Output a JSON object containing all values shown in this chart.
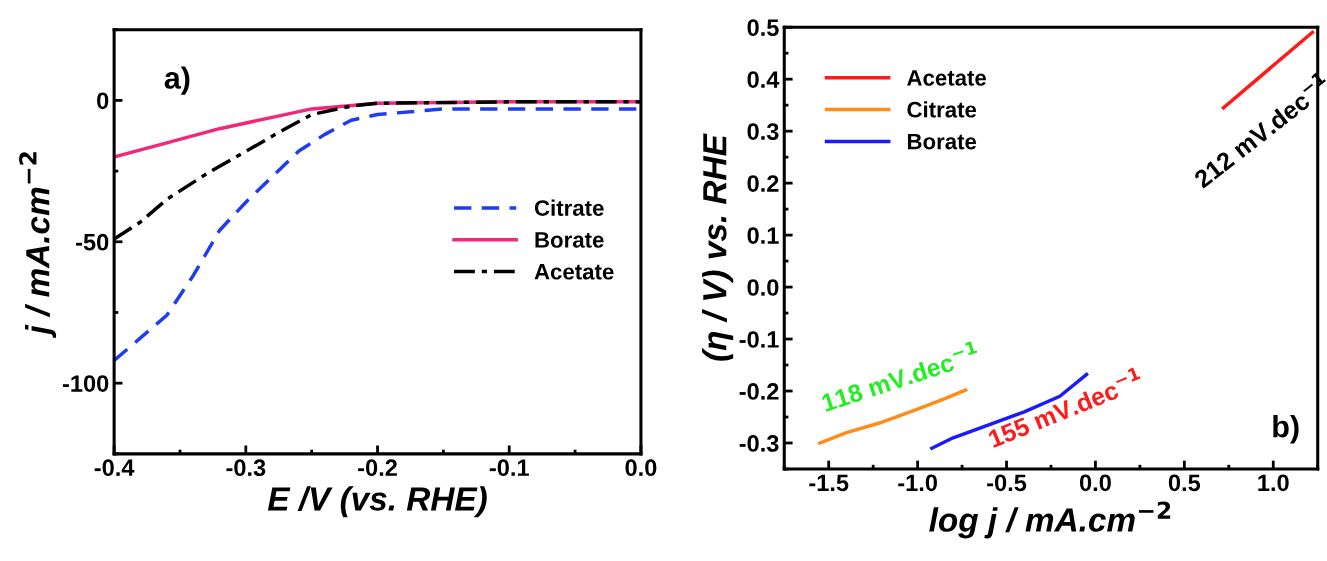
{
  "chart_data": [
    {
      "type": "line",
      "xlabel": "E /V (vs. RHE)",
      "ylabel": "j / mA.cm$^{−2}$",
      "xlim": [
        -0.4,
        0.0
      ],
      "xticks": [
        {
          "value": -0.4,
          "label": "-0.4"
        },
        {
          "value": -0.3,
          "label": "-0.3"
        },
        {
          "value": -0.2,
          "label": "-0.2"
        },
        {
          "value": -0.1,
          "label": "-0.1"
        },
        {
          "value": 0.0,
          "label": "0.0"
        }
      ],
      "ylim": [
        -125,
        25
      ],
      "yticks": [
        {
          "value": -100,
          "label": "-100"
        },
        {
          "value": -50,
          "label": "-50"
        },
        {
          "value": 0,
          "label": "0"
        }
      ],
      "legend": "center right",
      "grid": false,
      "annotations": [
        "a)"
      ],
      "series": [
        {
          "name": "Citrate",
          "color": "#1f3cf0",
          "line_style": "dashed",
          "x": [
            -0.4,
            -0.38,
            -0.36,
            -0.34,
            -0.32,
            -0.3,
            -0.28,
            -0.26,
            -0.24,
            -0.22,
            -0.2,
            -0.15,
            -0.1,
            0.0
          ],
          "values": [
            -92,
            -84,
            -76,
            -62,
            -46,
            -36,
            -27,
            -18,
            -12,
            -7,
            -5,
            -3,
            -3,
            -3
          ]
        },
        {
          "name": "Borate",
          "color": "#f0287a",
          "line_style": "solid",
          "x": [
            -0.4,
            -0.36,
            -0.32,
            -0.28,
            -0.25,
            -0.2,
            -0.1,
            0.0
          ],
          "values": [
            -20,
            -15,
            -10,
            -6,
            -3,
            -1,
            -0.5,
            -0.5
          ]
        },
        {
          "name": "Acetate",
          "color": "#000000",
          "line_style": "dashdot",
          "x": [
            -0.4,
            -0.38,
            -0.36,
            -0.33,
            -0.3,
            -0.27,
            -0.25,
            -0.22,
            -0.2,
            -0.1,
            0.0
          ],
          "values": [
            -49,
            -43,
            -35,
            -26,
            -18,
            -10,
            -5,
            -2,
            -1,
            -0.5,
            -0.5
          ]
        }
      ]
    },
    {
      "type": "line",
      "xlabel": "log j / mA.cm$^{−2}$",
      "ylabel": "(η / V) vs. RHE",
      "xlim": [
        -1.75,
        1.25
      ],
      "xticks": [
        {
          "value": -1.5,
          "label": "-1.5"
        },
        {
          "value": -1.0,
          "label": "-1.0"
        },
        {
          "value": -0.5,
          "label": "-0.5"
        },
        {
          "value": 0.0,
          "label": "0.0"
        },
        {
          "value": 0.5,
          "label": "0.5"
        },
        {
          "value": 1.0,
          "label": "1.0"
        }
      ],
      "ylim": [
        -0.35,
        0.5
      ],
      "yticks": [
        {
          "value": -0.3,
          "label": "-0.3"
        },
        {
          "value": -0.2,
          "label": "-0.2"
        },
        {
          "value": -0.1,
          "label": "-0.1"
        },
        {
          "value": 0.0,
          "label": "0.0"
        },
        {
          "value": 0.1,
          "label": "0.1"
        },
        {
          "value": 0.2,
          "label": "0.2"
        },
        {
          "value": 0.3,
          "label": "0.3"
        },
        {
          "value": 0.4,
          "label": "0.4"
        },
        {
          "value": 0.5,
          "label": "0.5"
        }
      ],
      "legend": "upper left",
      "grid": false,
      "annotations": [
        "212 mV.dec$^{−1}$",
        "118 mV.dec$^{−1}$",
        "155 mV.dec$^{−1}$",
        "b)"
      ],
      "series": [
        {
          "name": "Acetate",
          "color": "#ff1a1a",
          "line_style": "solid",
          "x": [
            0.72,
            1.22
          ],
          "values": [
            0.345,
            0.49
          ]
        },
        {
          "name": "Citrate",
          "color": "#ff8c1a",
          "line_style": "solid",
          "x": [
            -1.55,
            -1.4,
            -1.2,
            -1.0,
            -0.85,
            -0.73
          ],
          "values": [
            -0.3,
            -0.28,
            -0.26,
            -0.235,
            -0.215,
            -0.198
          ]
        },
        {
          "name": "Borate",
          "color": "#1a1aff",
          "line_style": "solid",
          "x": [
            -0.92,
            -0.8,
            -0.6,
            -0.4,
            -0.2,
            -0.05
          ],
          "values": [
            -0.31,
            -0.29,
            -0.265,
            -0.24,
            -0.21,
            -0.168
          ]
        }
      ]
    }
  ]
}
